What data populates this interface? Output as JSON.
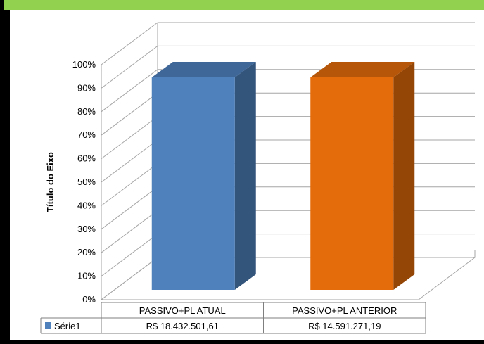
{
  "chart_data": {
    "type": "bar",
    "style": "3d-column",
    "categories": [
      "PASSIVO+PL ATUAL",
      "PASSIVO+PL ANTERIOR"
    ],
    "series": [
      {
        "name": "Série1",
        "values": [
          1.0,
          1.0
        ],
        "value_labels": [
          "R$ 18.432.501,61",
          "R$ 14.591.271,19"
        ],
        "colors": [
          "#4f81bd",
          "#e46c0a"
        ]
      }
    ],
    "ylabel": "Título do Eixo",
    "ylim": [
      0,
      1
    ],
    "yticks": [
      "0%",
      "10%",
      "20%",
      "30%",
      "40%",
      "50%",
      "60%",
      "70%",
      "80%",
      "90%",
      "100%"
    ],
    "grid": true,
    "legend": "data-table-left",
    "data_table": true
  },
  "colors": {
    "accent_bar": "#92d050",
    "frame": "#000000"
  }
}
